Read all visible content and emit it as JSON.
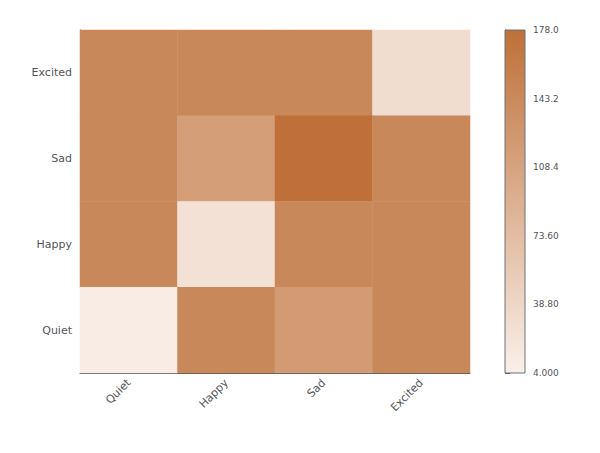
{
  "chart_data": {
    "type": "heatmap",
    "categories": [
      "Quiet",
      "Happy",
      "Sad",
      "Excited"
    ],
    "y_categories": [
      "Excited",
      "Sad",
      "Happy",
      "Quiet"
    ],
    "values": [
      [
        145,
        145,
        145,
        30
      ],
      [
        145,
        115,
        178,
        145
      ],
      [
        145,
        25,
        145,
        145
      ],
      [
        10,
        145,
        120,
        145
      ]
    ],
    "colormap": [
      "#faf0ea",
      "#be7038"
    ],
    "colorbar_range": [
      4.0,
      178.0
    ],
    "colorbar_ticks": [
      {
        "value": 4.0,
        "label": "4.000"
      },
      {
        "value": 38.8,
        "label": "38.80"
      },
      {
        "value": 73.6,
        "label": "73.60"
      },
      108.4,
      143.2,
      {
        "value": 178.0,
        "label": "178.0"
      }
    ],
    "grid": false
  }
}
